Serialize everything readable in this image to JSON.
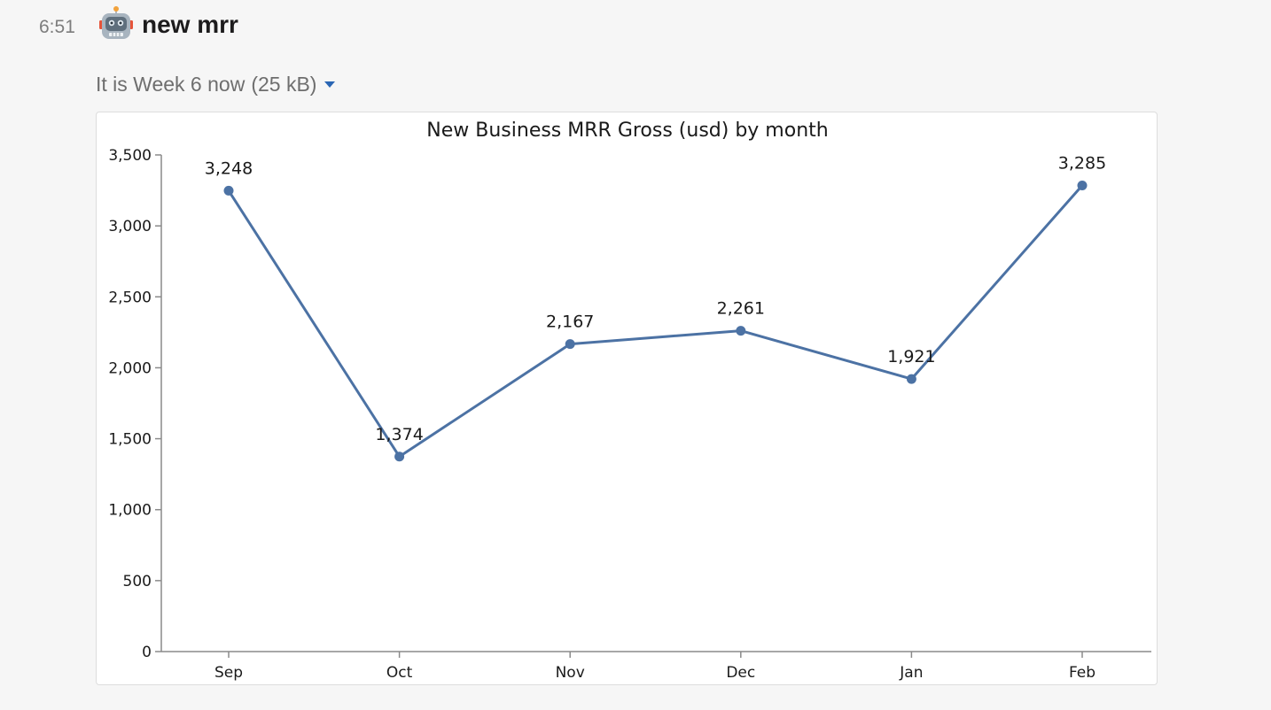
{
  "message": {
    "timestamp": "6:51",
    "sender": "new mrr",
    "avatar_icon": "robot-icon",
    "file": {
      "title": "It is Week 6 now",
      "size": "(25 kB)",
      "caret_icon": "caret-down-icon",
      "accent_color": "#2a66b4"
    }
  },
  "chart_data": {
    "type": "line",
    "title": "New Business MRR Gross (usd) by month",
    "xlabel": "",
    "ylabel": "",
    "categories": [
      "Sep",
      "Oct",
      "Nov",
      "Dec",
      "Jan",
      "Feb"
    ],
    "series": [
      {
        "values": [
          3248,
          1374,
          2167,
          2261,
          1921,
          3285
        ],
        "labels": [
          "3,248",
          "1,374",
          "2,167",
          "2,261",
          "1,921",
          "3,285"
        ],
        "color": "#4c72a4"
      }
    ],
    "ylim": [
      0,
      3500
    ],
    "yticks": [
      0,
      500,
      1000,
      1500,
      2000,
      2500,
      3000,
      3500
    ],
    "ytick_labels": [
      "0",
      "500",
      "1,000",
      "1,500",
      "2,000",
      "2,500",
      "3,000",
      "3,500"
    ],
    "grid": false,
    "legend": "none"
  }
}
